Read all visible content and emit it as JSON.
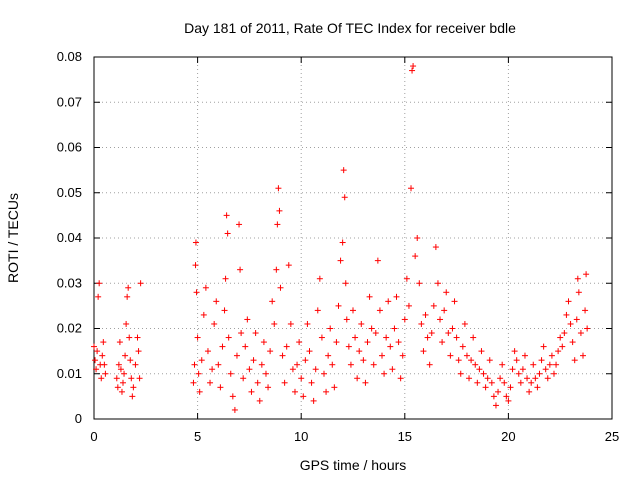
{
  "chart_data": {
    "type": "scatter",
    "title": "Day 181 of 2011, Rate Of TEC Index for receiver bdle",
    "xlabel": "GPS time / hours",
    "ylabel": "ROTI / TECUs",
    "xlim": [
      0,
      25
    ],
    "ylim": [
      0,
      0.08
    ],
    "x_ticks": [
      0,
      5,
      10,
      15,
      20,
      25
    ],
    "x_tick_labels": [
      "0",
      "5",
      "10",
      "15",
      "20",
      "25"
    ],
    "y_ticks": [
      0,
      0.01,
      0.02,
      0.03,
      0.04,
      0.05,
      0.06,
      0.07,
      0.08
    ],
    "y_tick_labels": [
      "0",
      "0.01",
      "0.02",
      "0.03",
      "0.04",
      "0.05",
      "0.06",
      "0.07",
      "0.08"
    ],
    "grid": true,
    "marker": "+",
    "color": "#ff0000",
    "series": [
      {
        "name": "ROTI",
        "points": [
          [
            0.0,
            0.016
          ],
          [
            0.05,
            0.013
          ],
          [
            0.1,
            0.011
          ],
          [
            0.15,
            0.015
          ],
          [
            0.2,
            0.027
          ],
          [
            0.25,
            0.03
          ],
          [
            0.3,
            0.012
          ],
          [
            0.35,
            0.009
          ],
          [
            0.4,
            0.014
          ],
          [
            0.45,
            0.017
          ],
          [
            0.5,
            0.012
          ],
          [
            0.55,
            0.01
          ],
          [
            1.1,
            0.009
          ],
          [
            1.15,
            0.007
          ],
          [
            1.2,
            0.012
          ],
          [
            1.25,
            0.017
          ],
          [
            1.3,
            0.011
          ],
          [
            1.35,
            0.006
          ],
          [
            1.4,
            0.008
          ],
          [
            1.45,
            0.01
          ],
          [
            1.5,
            0.014
          ],
          [
            1.55,
            0.021
          ],
          [
            1.6,
            0.027
          ],
          [
            1.65,
            0.029
          ],
          [
            1.7,
            0.018
          ],
          [
            1.75,
            0.013
          ],
          [
            1.8,
            0.009
          ],
          [
            1.85,
            0.005
          ],
          [
            1.9,
            0.007
          ],
          [
            2.0,
            0.012
          ],
          [
            2.1,
            0.018
          ],
          [
            2.15,
            0.015
          ],
          [
            2.2,
            0.009
          ],
          [
            2.25,
            0.03
          ],
          [
            4.8,
            0.008
          ],
          [
            4.85,
            0.012
          ],
          [
            4.9,
            0.034
          ],
          [
            4.92,
            0.039
          ],
          [
            4.95,
            0.028
          ],
          [
            5.0,
            0.018
          ],
          [
            5.05,
            0.01
          ],
          [
            5.1,
            0.006
          ],
          [
            5.2,
            0.013
          ],
          [
            5.3,
            0.023
          ],
          [
            5.4,
            0.029
          ],
          [
            5.5,
            0.015
          ],
          [
            5.6,
            0.008
          ],
          [
            5.7,
            0.011
          ],
          [
            5.8,
            0.021
          ],
          [
            5.9,
            0.026
          ],
          [
            6.0,
            0.012
          ],
          [
            6.1,
            0.007
          ],
          [
            6.2,
            0.016
          ],
          [
            6.3,
            0.024
          ],
          [
            6.35,
            0.031
          ],
          [
            6.4,
            0.045
          ],
          [
            6.45,
            0.041
          ],
          [
            6.5,
            0.018
          ],
          [
            6.6,
            0.01
          ],
          [
            6.7,
            0.005
          ],
          [
            6.8,
            0.002
          ],
          [
            6.9,
            0.014
          ],
          [
            7.0,
            0.043
          ],
          [
            7.05,
            0.033
          ],
          [
            7.1,
            0.019
          ],
          [
            7.2,
            0.009
          ],
          [
            7.3,
            0.016
          ],
          [
            7.4,
            0.022
          ],
          [
            7.5,
            0.011
          ],
          [
            7.6,
            0.006
          ],
          [
            7.7,
            0.013
          ],
          [
            7.8,
            0.019
          ],
          [
            7.9,
            0.008
          ],
          [
            8.0,
            0.004
          ],
          [
            8.1,
            0.012
          ],
          [
            8.2,
            0.017
          ],
          [
            8.3,
            0.01
          ],
          [
            8.4,
            0.007
          ],
          [
            8.5,
            0.015
          ],
          [
            8.6,
            0.026
          ],
          [
            8.7,
            0.021
          ],
          [
            8.8,
            0.033
          ],
          [
            8.85,
            0.043
          ],
          [
            8.9,
            0.051
          ],
          [
            8.95,
            0.046
          ],
          [
            9.0,
            0.029
          ],
          [
            9.1,
            0.014
          ],
          [
            9.2,
            0.008
          ],
          [
            9.3,
            0.016
          ],
          [
            9.4,
            0.034
          ],
          [
            9.5,
            0.021
          ],
          [
            9.6,
            0.011
          ],
          [
            9.7,
            0.006
          ],
          [
            9.8,
            0.012
          ],
          [
            9.9,
            0.017
          ],
          [
            10.0,
            0.009
          ],
          [
            10.1,
            0.005
          ],
          [
            10.2,
            0.013
          ],
          [
            10.3,
            0.021
          ],
          [
            10.4,
            0.015
          ],
          [
            10.5,
            0.008
          ],
          [
            10.6,
            0.004
          ],
          [
            10.7,
            0.011
          ],
          [
            10.8,
            0.024
          ],
          [
            10.9,
            0.031
          ],
          [
            11.0,
            0.018
          ],
          [
            11.1,
            0.01
          ],
          [
            11.2,
            0.006
          ],
          [
            11.3,
            0.014
          ],
          [
            11.4,
            0.02
          ],
          [
            11.5,
            0.012
          ],
          [
            11.6,
            0.007
          ],
          [
            11.7,
            0.017
          ],
          [
            11.8,
            0.025
          ],
          [
            11.9,
            0.035
          ],
          [
            12.0,
            0.039
          ],
          [
            12.05,
            0.055
          ],
          [
            12.1,
            0.049
          ],
          [
            12.15,
            0.03
          ],
          [
            12.2,
            0.022
          ],
          [
            12.3,
            0.016
          ],
          [
            12.4,
            0.012
          ],
          [
            12.5,
            0.024
          ],
          [
            12.6,
            0.018
          ],
          [
            12.7,
            0.009
          ],
          [
            12.8,
            0.015
          ],
          [
            12.9,
            0.021
          ],
          [
            13.0,
            0.013
          ],
          [
            13.1,
            0.008
          ],
          [
            13.2,
            0.017
          ],
          [
            13.3,
            0.027
          ],
          [
            13.4,
            0.02
          ],
          [
            13.5,
            0.012
          ],
          [
            13.6,
            0.019
          ],
          [
            13.7,
            0.035
          ],
          [
            13.8,
            0.024
          ],
          [
            13.9,
            0.014
          ],
          [
            14.0,
            0.01
          ],
          [
            14.1,
            0.018
          ],
          [
            14.2,
            0.026
          ],
          [
            14.3,
            0.016
          ],
          [
            14.4,
            0.011
          ],
          [
            14.5,
            0.02
          ],
          [
            14.6,
            0.027
          ],
          [
            14.7,
            0.017
          ],
          [
            14.8,
            0.009
          ],
          [
            14.9,
            0.014
          ],
          [
            15.0,
            0.022
          ],
          [
            15.1,
            0.031
          ],
          [
            15.2,
            0.025
          ],
          [
            15.3,
            0.051
          ],
          [
            15.35,
            0.077
          ],
          [
            15.4,
            0.078
          ],
          [
            15.5,
            0.036
          ],
          [
            15.6,
            0.04
          ],
          [
            15.7,
            0.03
          ],
          [
            15.8,
            0.021
          ],
          [
            15.9,
            0.015
          ],
          [
            16.0,
            0.023
          ],
          [
            16.1,
            0.018
          ],
          [
            16.2,
            0.012
          ],
          [
            16.3,
            0.019
          ],
          [
            16.4,
            0.025
          ],
          [
            16.5,
            0.038
          ],
          [
            16.6,
            0.03
          ],
          [
            16.7,
            0.022
          ],
          [
            16.8,
            0.017
          ],
          [
            16.9,
            0.024
          ],
          [
            17.0,
            0.028
          ],
          [
            17.1,
            0.019
          ],
          [
            17.2,
            0.014
          ],
          [
            17.3,
            0.02
          ],
          [
            17.4,
            0.026
          ],
          [
            17.5,
            0.018
          ],
          [
            17.6,
            0.013
          ],
          [
            17.7,
            0.01
          ],
          [
            17.8,
            0.016
          ],
          [
            17.9,
            0.021
          ],
          [
            18.0,
            0.014
          ],
          [
            18.1,
            0.009
          ],
          [
            18.2,
            0.013
          ],
          [
            18.3,
            0.018
          ],
          [
            18.4,
            0.012
          ],
          [
            18.5,
            0.008
          ],
          [
            18.6,
            0.011
          ],
          [
            18.7,
            0.015
          ],
          [
            18.8,
            0.01
          ],
          [
            18.9,
            0.007
          ],
          [
            19.0,
            0.009
          ],
          [
            19.1,
            0.013
          ],
          [
            19.2,
            0.008
          ],
          [
            19.3,
            0.005
          ],
          [
            19.4,
            0.003
          ],
          [
            19.5,
            0.006
          ],
          [
            19.6,
            0.009
          ],
          [
            19.7,
            0.012
          ],
          [
            19.8,
            0.008
          ],
          [
            19.9,
            0.005
          ],
          [
            20.0,
            0.004
          ],
          [
            20.1,
            0.007
          ],
          [
            20.2,
            0.011
          ],
          [
            20.3,
            0.015
          ],
          [
            20.4,
            0.013
          ],
          [
            20.5,
            0.01
          ],
          [
            20.6,
            0.008
          ],
          [
            20.7,
            0.011
          ],
          [
            20.8,
            0.014
          ],
          [
            20.9,
            0.009
          ],
          [
            21.0,
            0.006
          ],
          [
            21.1,
            0.008
          ],
          [
            21.2,
            0.012
          ],
          [
            21.3,
            0.009
          ],
          [
            21.4,
            0.007
          ],
          [
            21.5,
            0.01
          ],
          [
            21.6,
            0.013
          ],
          [
            21.7,
            0.016
          ],
          [
            21.8,
            0.011
          ],
          [
            21.9,
            0.009
          ],
          [
            22.0,
            0.012
          ],
          [
            22.1,
            0.014
          ],
          [
            22.2,
            0.01
          ],
          [
            22.3,
            0.012
          ],
          [
            22.4,
            0.015
          ],
          [
            22.5,
            0.018
          ],
          [
            22.6,
            0.016
          ],
          [
            22.7,
            0.019
          ],
          [
            22.8,
            0.023
          ],
          [
            22.9,
            0.026
          ],
          [
            23.0,
            0.021
          ],
          [
            23.1,
            0.017
          ],
          [
            23.2,
            0.013
          ],
          [
            23.3,
            0.022
          ],
          [
            23.35,
            0.031
          ],
          [
            23.4,
            0.028
          ],
          [
            23.5,
            0.019
          ],
          [
            23.6,
            0.014
          ],
          [
            23.7,
            0.024
          ],
          [
            23.75,
            0.032
          ],
          [
            23.8,
            0.02
          ]
        ]
      }
    ]
  }
}
